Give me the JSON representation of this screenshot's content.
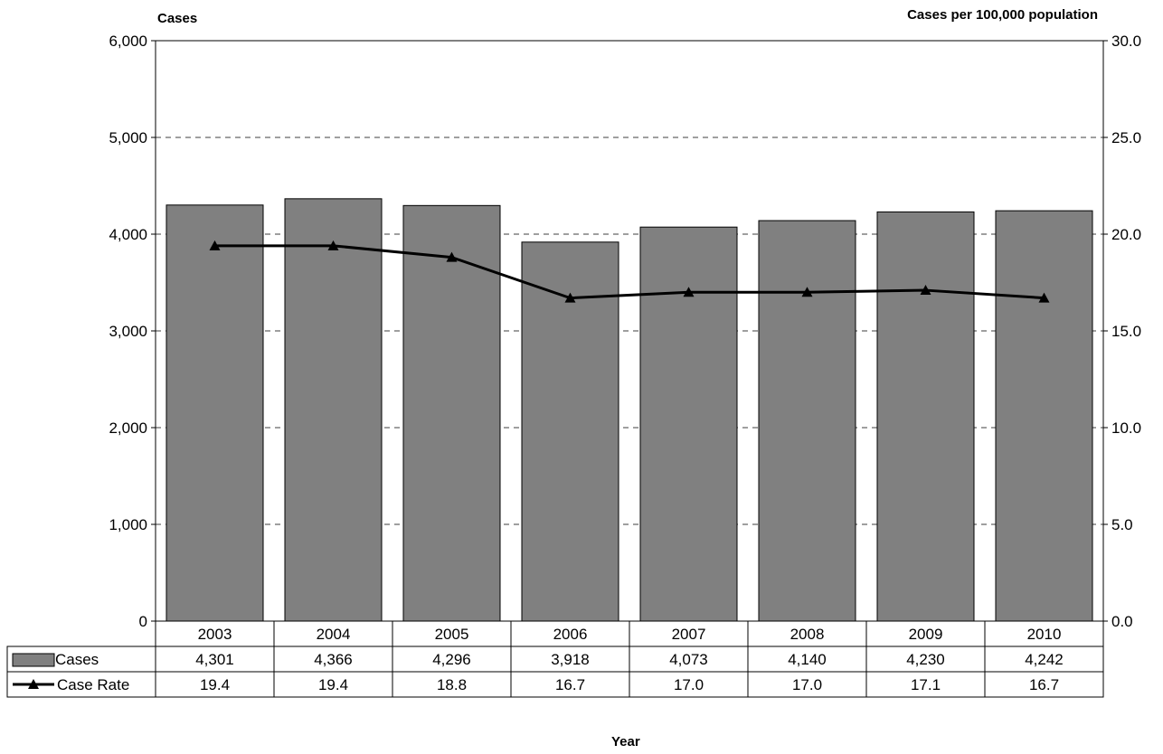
{
  "chart_data": {
    "type": "bar",
    "categories": [
      "2003",
      "2004",
      "2005",
      "2006",
      "2007",
      "2008",
      "2009",
      "2010"
    ],
    "series": [
      {
        "name": "Cases",
        "type": "bar",
        "axis": "left",
        "values": [
          4301,
          4366,
          4296,
          3918,
          4073,
          4140,
          4230,
          4242
        ],
        "labels": [
          "4,301",
          "4,366",
          "4,296",
          "3,918",
          "4,073",
          "4,140",
          "4,230",
          "4,242"
        ],
        "color": "#808080"
      },
      {
        "name": "Case Rate",
        "type": "line",
        "axis": "right",
        "marker": "triangle",
        "values": [
          19.4,
          19.4,
          18.8,
          16.7,
          17.0,
          17.0,
          17.1,
          16.7
        ],
        "labels": [
          "19.4",
          "19.4",
          "18.8",
          "16.7",
          "17.0",
          "17.0",
          "17.1",
          "16.7"
        ],
        "color": "#000000"
      }
    ],
    "ylabel": "Cases",
    "y2label": "Cases per 100,000 population",
    "xlabel": "Year",
    "ylim": [
      0,
      6000
    ],
    "y2lim": [
      0,
      30
    ],
    "yticks": [
      "0",
      "1,000",
      "2,000",
      "3,000",
      "4,000",
      "5,000",
      "6,000"
    ],
    "y2ticks": [
      "0.0",
      "5.0",
      "10.0",
      "15.0",
      "20.0",
      "25.0",
      "30.0"
    ],
    "grid": "dashed-horizontal",
    "legend": "data-table-below"
  }
}
